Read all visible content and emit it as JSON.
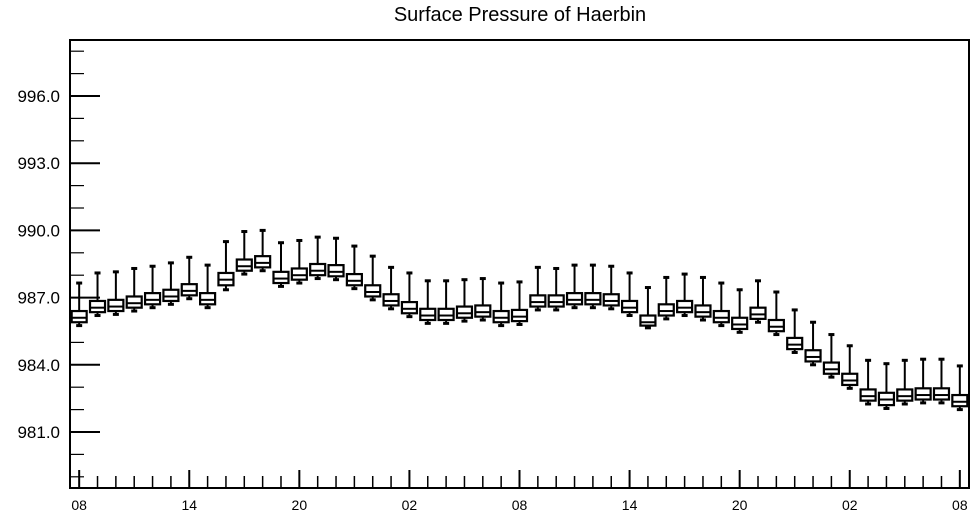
{
  "chart_data": {
    "type": "boxplot",
    "title": "Surface Pressure of Haerbin",
    "xlabel": "",
    "ylabel": "",
    "ylim": [
      978.5,
      998.5
    ],
    "yticks": [
      981.0,
      984.0,
      987.0,
      990.0,
      993.0,
      996.0
    ],
    "ytick_labels": [
      "981.0",
      "984.0",
      "987.0",
      "990.0",
      "993.0",
      "996.0"
    ],
    "xlim": [
      7.5,
      56.5
    ],
    "xticks": [
      8,
      14,
      20,
      26,
      32,
      38,
      44,
      50,
      56
    ],
    "xtick_labels": [
      "08",
      "14",
      "20",
      "02",
      "08",
      "14",
      "20",
      "02",
      "08"
    ],
    "grid": false,
    "colors": {
      "box_fill": "#ffffff",
      "stroke": "#000000"
    },
    "boxes": [
      {
        "x": 8,
        "whislo": 985.75,
        "q1": 985.9,
        "median": 986.1,
        "q3": 986.4,
        "whishi": 987.65
      },
      {
        "x": 9,
        "whislo": 986.2,
        "q1": 986.35,
        "median": 986.55,
        "q3": 986.85,
        "whishi": 988.1
      },
      {
        "x": 10,
        "whislo": 986.25,
        "q1": 986.4,
        "median": 986.6,
        "q3": 986.9,
        "whishi": 988.15
      },
      {
        "x": 11,
        "whislo": 986.4,
        "q1": 986.55,
        "median": 986.75,
        "q3": 987.05,
        "whishi": 988.3
      },
      {
        "x": 12,
        "whislo": 986.55,
        "q1": 986.7,
        "median": 986.9,
        "q3": 987.2,
        "whishi": 988.4
      },
      {
        "x": 13,
        "whislo": 986.7,
        "q1": 986.85,
        "median": 987.05,
        "q3": 987.35,
        "whishi": 988.55
      },
      {
        "x": 14,
        "whislo": 986.95,
        "q1": 987.1,
        "median": 987.3,
        "q3": 987.6,
        "whishi": 988.8
      },
      {
        "x": 15,
        "whislo": 986.55,
        "q1": 986.7,
        "median": 986.9,
        "q3": 987.2,
        "whishi": 988.45
      },
      {
        "x": 16,
        "whislo": 987.35,
        "q1": 987.55,
        "median": 987.8,
        "q3": 988.1,
        "whishi": 989.5
      },
      {
        "x": 17,
        "whislo": 988.05,
        "q1": 988.2,
        "median": 988.4,
        "q3": 988.7,
        "whishi": 989.95
      },
      {
        "x": 18,
        "whislo": 988.2,
        "q1": 988.35,
        "median": 988.55,
        "q3": 988.85,
        "whishi": 990.0
      },
      {
        "x": 19,
        "whislo": 987.5,
        "q1": 987.65,
        "median": 987.85,
        "q3": 988.15,
        "whishi": 989.45
      },
      {
        "x": 20,
        "whislo": 987.65,
        "q1": 987.8,
        "median": 988.0,
        "q3": 988.3,
        "whishi": 989.55
      },
      {
        "x": 21,
        "whislo": 987.85,
        "q1": 988.0,
        "median": 988.2,
        "q3": 988.5,
        "whishi": 989.7
      },
      {
        "x": 22,
        "whislo": 987.8,
        "q1": 987.95,
        "median": 988.15,
        "q3": 988.45,
        "whishi": 989.65
      },
      {
        "x": 23,
        "whislo": 987.4,
        "q1": 987.55,
        "median": 987.75,
        "q3": 988.05,
        "whishi": 989.3
      },
      {
        "x": 24,
        "whislo": 986.9,
        "q1": 987.05,
        "median": 987.25,
        "q3": 987.55,
        "whishi": 988.85
      },
      {
        "x": 25,
        "whislo": 986.5,
        "q1": 986.65,
        "median": 986.85,
        "q3": 987.15,
        "whishi": 988.35
      },
      {
        "x": 26,
        "whislo": 986.15,
        "q1": 986.3,
        "median": 986.5,
        "q3": 986.8,
        "whishi": 988.1
      },
      {
        "x": 27,
        "whislo": 985.85,
        "q1": 986.0,
        "median": 986.2,
        "q3": 986.5,
        "whishi": 987.75
      },
      {
        "x": 28,
        "whislo": 985.85,
        "q1": 986.0,
        "median": 986.2,
        "q3": 986.5,
        "whishi": 987.75
      },
      {
        "x": 29,
        "whislo": 985.95,
        "q1": 986.1,
        "median": 986.3,
        "q3": 986.6,
        "whishi": 987.8
      },
      {
        "x": 30,
        "whislo": 986.0,
        "q1": 986.15,
        "median": 986.35,
        "q3": 986.65,
        "whishi": 987.85
      },
      {
        "x": 31,
        "whislo": 985.75,
        "q1": 985.9,
        "median": 986.1,
        "q3": 986.4,
        "whishi": 987.65
      },
      {
        "x": 32,
        "whislo": 985.8,
        "q1": 985.95,
        "median": 986.15,
        "q3": 986.45,
        "whishi": 987.7
      },
      {
        "x": 33,
        "whislo": 986.45,
        "q1": 986.6,
        "median": 986.8,
        "q3": 987.1,
        "whishi": 988.35
      },
      {
        "x": 34,
        "whislo": 986.45,
        "q1": 986.6,
        "median": 986.8,
        "q3": 987.1,
        "whishi": 988.3
      },
      {
        "x": 35,
        "whislo": 986.55,
        "q1": 986.7,
        "median": 986.9,
        "q3": 987.2,
        "whishi": 988.45
      },
      {
        "x": 36,
        "whislo": 986.55,
        "q1": 986.7,
        "median": 986.9,
        "q3": 987.2,
        "whishi": 988.45
      },
      {
        "x": 37,
        "whislo": 986.5,
        "q1": 986.65,
        "median": 986.85,
        "q3": 987.15,
        "whishi": 988.4
      },
      {
        "x": 38,
        "whislo": 986.2,
        "q1": 986.35,
        "median": 986.55,
        "q3": 986.85,
        "whishi": 988.1
      },
      {
        "x": 39,
        "whislo": 985.65,
        "q1": 985.75,
        "median": 985.9,
        "q3": 986.2,
        "whishi": 987.45
      },
      {
        "x": 40,
        "whislo": 986.05,
        "q1": 986.2,
        "median": 986.4,
        "q3": 986.7,
        "whishi": 987.9
      },
      {
        "x": 41,
        "whislo": 986.2,
        "q1": 986.35,
        "median": 986.55,
        "q3": 986.85,
        "whishi": 988.05
      },
      {
        "x": 42,
        "whislo": 986.0,
        "q1": 986.15,
        "median": 986.35,
        "q3": 986.65,
        "whishi": 987.9
      },
      {
        "x": 43,
        "whislo": 985.75,
        "q1": 985.9,
        "median": 986.1,
        "q3": 986.4,
        "whishi": 987.65
      },
      {
        "x": 44,
        "whislo": 985.45,
        "q1": 985.6,
        "median": 985.8,
        "q3": 986.1,
        "whishi": 987.35
      },
      {
        "x": 45,
        "whislo": 985.9,
        "q1": 986.05,
        "median": 986.25,
        "q3": 986.55,
        "whishi": 987.75
      },
      {
        "x": 46,
        "whislo": 985.35,
        "q1": 985.5,
        "median": 985.7,
        "q3": 986.0,
        "whishi": 987.25
      },
      {
        "x": 47,
        "whislo": 984.55,
        "q1": 984.7,
        "median": 984.9,
        "q3": 985.2,
        "whishi": 986.45
      },
      {
        "x": 48,
        "whislo": 984.0,
        "q1": 984.15,
        "median": 984.35,
        "q3": 984.65,
        "whishi": 985.9
      },
      {
        "x": 49,
        "whislo": 983.45,
        "q1": 983.6,
        "median": 983.8,
        "q3": 984.1,
        "whishi": 985.35
      },
      {
        "x": 50,
        "whislo": 982.95,
        "q1": 983.1,
        "median": 983.3,
        "q3": 983.6,
        "whishi": 984.85
      },
      {
        "x": 51,
        "whislo": 982.25,
        "q1": 982.4,
        "median": 982.6,
        "q3": 982.9,
        "whishi": 984.2
      },
      {
        "x": 52,
        "whislo": 982.05,
        "q1": 982.2,
        "median": 982.45,
        "q3": 982.75,
        "whishi": 984.05
      },
      {
        "x": 53,
        "whislo": 982.25,
        "q1": 982.4,
        "median": 982.6,
        "q3": 982.9,
        "whishi": 984.2
      },
      {
        "x": 54,
        "whislo": 982.3,
        "q1": 982.45,
        "median": 982.65,
        "q3": 982.95,
        "whishi": 984.25
      },
      {
        "x": 55,
        "whislo": 982.3,
        "q1": 982.45,
        "median": 982.65,
        "q3": 982.95,
        "whishi": 984.25
      },
      {
        "x": 56,
        "whislo": 982.0,
        "q1": 982.15,
        "median": 982.35,
        "q3": 982.65,
        "whishi": 983.95
      }
    ]
  }
}
